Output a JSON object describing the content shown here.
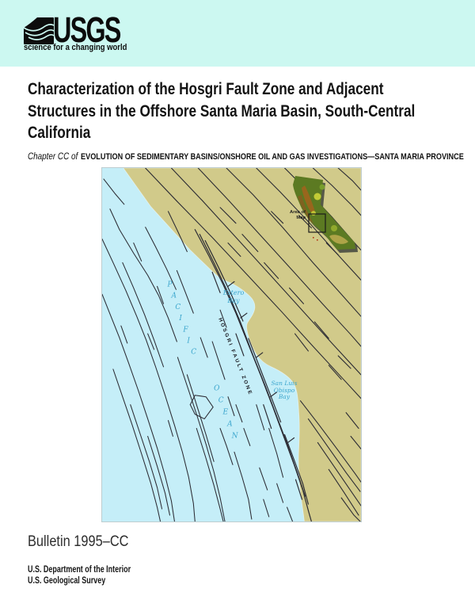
{
  "banner": {
    "logo_text": "USGS",
    "tagline": "science for a changing world",
    "bg_color": "#ccf8f1"
  },
  "title": {
    "line1": "Characterization of the Hosgri Fault Zone and Adjacent",
    "line2": "Structures in the Offshore Santa Maria Basin, South-Central",
    "line3": "California"
  },
  "chapter": {
    "prefix": "Chapter CC of",
    "series": "EVOLUTION OF SEDIMENTARY BASINS/ONSHORE OIL AND GAS INVESTIGATIONS—SANTA MARIA PROVINCE"
  },
  "map": {
    "ocean_label_word1": "PACIFIC",
    "ocean_label_word2": "OCEAN",
    "fault_zone_label": "HOSGRI FAULT ZONE",
    "estero_bay": {
      "line1": "Estero",
      "line2": "Bay"
    },
    "san_luis_bay": {
      "line1": "San Luis",
      "line2": "Obispo",
      "line3": "Bay"
    },
    "inset": {
      "line1": "Area of",
      "line2": "Map"
    },
    "colors": {
      "ocean": "#c5eef8",
      "land": "#d1ca8a",
      "fault": "#2b2b33",
      "water_text": "#3aa5cd",
      "banner_bg": "#ccf8f1"
    },
    "fault_lines": {
      "ocean": [
        "2,14 16,32 28,46",
        "10,52 22,78 40,108 58,136 72,162 84,190 95,220",
        "0,90 14,120 30,155 44,188 56,218 68,252 80,288 92,326 102,360 110,392 116,425 118,448",
        "26,120 40,152 54,186 66,218 78,252",
        "55,75 68,100 82,128 94,154",
        "84,55 96,80 108,106",
        "0,160 10,185 22,215 34,248 46,282 58,318 70,355 80,390 88,422 92,448",
        "14,255 26,290 38,325 50,362 62,400 70,430 74,448",
        "36,300 48,336 60,372 70,405 76,432",
        "58,340 70,378 80,412 86,440",
        "96,240 108,276 120,312 132,350 142,385 150,418 156,448",
        "108,262 120,300 132,338 142,372",
        "120,330 132,368 142,402 150,432 154,448",
        "112,300 118,288 132,290 141,303",
        "112,300 118,312 130,318 141,303",
        "150,330 158,352 166,376",
        "168,360 178,392 186,420 190,445",
        "180,330 188,352",
        "70,150 78,172",
        "40,95 50,118",
        "140,220 148,244 156,268",
        "150,180 158,202",
        "95,130 106,158 116,184",
        "58,210 66,230",
        "84,320 90,340",
        "24,200 32,222",
        "170,300 178,322",
        "200,380 210,408",
        "205,420 212,442",
        "222,400 230,424",
        "235,430 242,448",
        "212,330 222,362 230,392",
        "196,300 206,332",
        "125,215 134,240",
        "160,290 168,314"
      ],
      "hosgri": [
        "118,78 136,112 154,148 170,184 186,224 202,264 217,303 231,341 244,376 255,408 262,434 266,448",
        "124,84 142,120 160,158 176,196 192,238 208,278 222,315 236,352 248,386 258,416",
        "131,92 148,126 164,160 179,194",
        "186,216 200,252 214,288 227,322",
        "232,338 244,370 255,400 262,426",
        "160,150 168,144",
        "176,190 184,184",
        "196,240 204,234",
        "214,290 222,284",
        "236,348 244,342",
        "140,132 150,158",
        "170,210 180,238",
        "205,300 215,330",
        "246,395 254,420"
      ],
      "land": [
        "55,0 95,42 140,88 185,136 228,182 268,226 305,266 329,292",
        "88,0 128,42 172,90 214,136 254,180 292,222 329,262",
        "122,0 158,38 200,84 242,130 280,172 315,210 329,226",
        "158,0 192,34 230,76 268,120 304,160 329,188",
        "196,0 226,30 262,68 296,106 329,142",
        "232,0 260,28 292,62 320,94 329,104",
        "268,0 292,22 318,48 329,60",
        "300,0 318,16 329,28",
        "252,295 276,326 300,358 322,388 329,398",
        "262,318 286,352 310,386 328,410",
        "274,348 296,380 318,412 329,428",
        "288,382 308,412 326,440",
        "304,418 320,440 328,448",
        "150,50 170,70",
        "178,84 198,106",
        "206,120 224,140",
        "160,95 176,112",
        "238,152 256,172",
        "270,195 288,216",
        "300,238 316,254",
        "250,60 266,76",
        "285,95 300,110",
        "215,55 230,70",
        "310,310 326,330",
        "316,340 329,356",
        "245,210 262,232",
        "288,250 304,268"
      ]
    }
  },
  "footer": {
    "bulletin": "Bulletin 1995–CC",
    "department": "U.S. Department of the Interior",
    "survey": "U.S. Geological Survey"
  }
}
